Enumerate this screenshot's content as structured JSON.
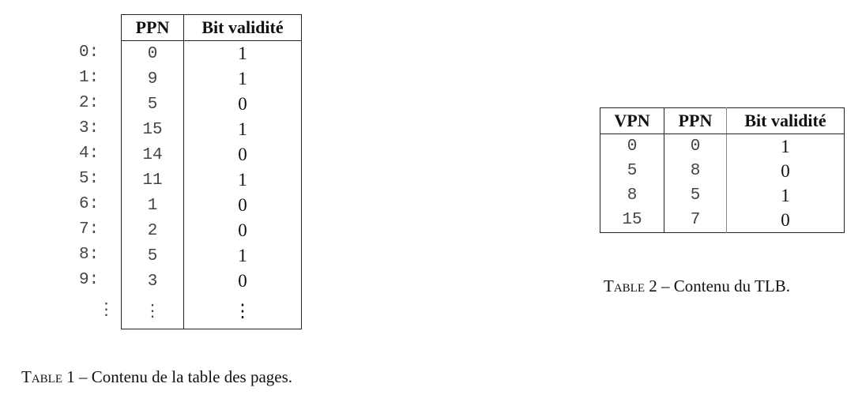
{
  "table1": {
    "headers": [
      "PPN",
      "Bit validité"
    ],
    "rows": [
      {
        "index": "0:",
        "ppn": "0",
        "valid": "1"
      },
      {
        "index": "1:",
        "ppn": "9",
        "valid": "1"
      },
      {
        "index": "2:",
        "ppn": "5",
        "valid": "0"
      },
      {
        "index": "3:",
        "ppn": "15",
        "valid": "1"
      },
      {
        "index": "4:",
        "ppn": "14",
        "valid": "0"
      },
      {
        "index": "5:",
        "ppn": "11",
        "valid": "1"
      },
      {
        "index": "6:",
        "ppn": "1",
        "valid": "0"
      },
      {
        "index": "7:",
        "ppn": "2",
        "valid": "0"
      },
      {
        "index": "8:",
        "ppn": "5",
        "valid": "1"
      },
      {
        "index": "9:",
        "ppn": "3",
        "valid": "0"
      }
    ],
    "ellipsis": "⋮",
    "caption_label": "Table 1",
    "caption_text": " – Contenu de la table des pages."
  },
  "table2": {
    "headers": [
      "VPN",
      "PPN",
      "Bit validité"
    ],
    "rows": [
      {
        "vpn": "0",
        "ppn": "0",
        "valid": "1"
      },
      {
        "vpn": "5",
        "ppn": "8",
        "valid": "0"
      },
      {
        "vpn": "8",
        "ppn": "5",
        "valid": "1"
      },
      {
        "vpn": "15",
        "ppn": "7",
        "valid": "0"
      }
    ],
    "caption_label": "Table 2",
    "caption_text": " – Contenu du TLB."
  }
}
